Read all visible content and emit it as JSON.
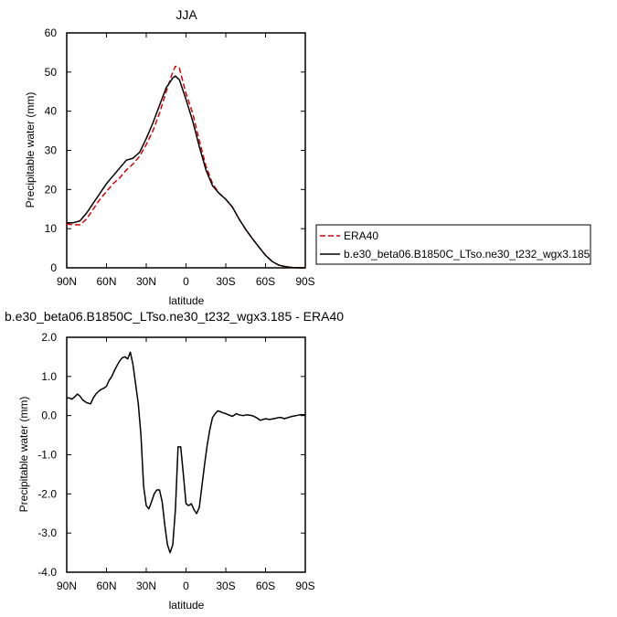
{
  "chart_data": [
    {
      "type": "line",
      "title": "JJA",
      "xlabel": "latitude",
      "ylabel": "Precipitable water (mm)",
      "xlim": [
        90,
        -90
      ],
      "ylim": [
        0,
        60
      ],
      "x_ticks": [
        90,
        60,
        30,
        0,
        -30,
        -60,
        -90
      ],
      "x_tick_labels": [
        "90N",
        "60N",
        "30N",
        "0",
        "30S",
        "60S",
        "90S"
      ],
      "y_ticks": [
        0,
        10,
        20,
        30,
        40,
        50,
        60
      ],
      "y_tick_labels": [
        "0",
        "10",
        "20",
        "30",
        "40",
        "50",
        "60"
      ],
      "legend_position": "right",
      "series": [
        {
          "name": "ERA40",
          "color": "#dd0000",
          "dash": true,
          "x": [
            90,
            85,
            80,
            75,
            70,
            65,
            60,
            55,
            50,
            45,
            40,
            35,
            30,
            25,
            20,
            15,
            10,
            8,
            5,
            0,
            -5,
            -10,
            -15,
            -20,
            -25,
            -30,
            -35,
            -40,
            -45,
            -50,
            -55,
            -60,
            -65,
            -70,
            -75,
            -80,
            -85,
            -90
          ],
          "values": [
            11.2,
            11.0,
            11.0,
            12.5,
            15.0,
            17.5,
            19.5,
            21.5,
            23.0,
            25.0,
            26.5,
            28.5,
            31.5,
            35.0,
            39.5,
            45.0,
            50.0,
            51.5,
            51.0,
            44.5,
            39.5,
            32.5,
            26.0,
            21.5,
            19.0,
            17.5,
            15.5,
            12.5,
            9.8,
            7.5,
            5.3,
            3.2,
            1.6,
            0.7,
            0.3,
            0.1,
            0.0,
            0.0
          ]
        },
        {
          "name": "b.e30_beta06.B1850C_LTso.ne30_t232_wgx3.185",
          "color": "#000000",
          "dash": false,
          "x": [
            90,
            85,
            80,
            75,
            70,
            65,
            60,
            55,
            50,
            45,
            40,
            35,
            30,
            25,
            20,
            15,
            10,
            8,
            5,
            0,
            -5,
            -10,
            -15,
            -20,
            -25,
            -30,
            -35,
            -40,
            -45,
            -50,
            -55,
            -60,
            -65,
            -70,
            -75,
            -80,
            -85,
            -90
          ],
          "values": [
            11.5,
            11.5,
            12.0,
            14.0,
            16.5,
            19.0,
            21.5,
            23.5,
            25.5,
            27.5,
            28.0,
            29.5,
            33.0,
            37.0,
            41.5,
            46.0,
            48.5,
            49.0,
            48.0,
            43.0,
            37.5,
            31.0,
            25.0,
            21.0,
            19.0,
            17.5,
            15.5,
            12.5,
            9.8,
            7.5,
            5.3,
            3.2,
            1.6,
            0.7,
            0.3,
            0.1,
            0.0,
            0.0
          ]
        }
      ]
    },
    {
      "type": "line",
      "title": "b.e30_beta06.B1850C_LTso.ne30_t232_wgx3.185 - ERA40",
      "xlabel": "latitude",
      "ylabel": "Precipitable water (mm)",
      "xlim": [
        90,
        -90
      ],
      "ylim": [
        -4,
        2
      ],
      "x_ticks": [
        90,
        60,
        30,
        0,
        -30,
        -60,
        -90
      ],
      "x_tick_labels": [
        "90N",
        "60N",
        "30N",
        "0",
        "30S",
        "60S",
        "90S"
      ],
      "y_ticks": [
        -4,
        -3,
        -2,
        -1,
        0,
        1,
        2
      ],
      "y_tick_labels": [
        "-4.0",
        "-3.0",
        "-2.0",
        "-1.0",
        "0.0",
        "1.0",
        "2.0"
      ],
      "series": [
        {
          "color": "#000000",
          "dash": false,
          "x": [
            90,
            88,
            86,
            84,
            82,
            80,
            78,
            75,
            72,
            70,
            68,
            66,
            64,
            62,
            60,
            58,
            56,
            54,
            52,
            50,
            48,
            46,
            44,
            42,
            40,
            38,
            36,
            34,
            32,
            30,
            28,
            26,
            24,
            22,
            20,
            18,
            16,
            14,
            12,
            10,
            8,
            6,
            4,
            2,
            0,
            -2,
            -4,
            -6,
            -8,
            -10,
            -12,
            -14,
            -16,
            -18,
            -20,
            -22,
            -24,
            -26,
            -28,
            -30,
            -32,
            -35,
            -38,
            -40,
            -43,
            -46,
            -50,
            -53,
            -56,
            -60,
            -63,
            -66,
            -70,
            -72,
            -74,
            -77,
            -80,
            -83,
            -86,
            -88,
            -90
          ],
          "values": [
            0.45,
            0.45,
            0.42,
            0.48,
            0.55,
            0.5,
            0.4,
            0.33,
            0.3,
            0.45,
            0.55,
            0.62,
            0.67,
            0.7,
            0.75,
            0.9,
            1.0,
            1.15,
            1.28,
            1.4,
            1.48,
            1.5,
            1.45,
            1.62,
            1.3,
            0.8,
            0.3,
            -0.5,
            -1.8,
            -2.3,
            -2.38,
            -2.2,
            -2.0,
            -1.9,
            -1.9,
            -2.2,
            -2.8,
            -3.3,
            -3.5,
            -3.3,
            -2.4,
            -0.8,
            -0.8,
            -1.5,
            -2.25,
            -2.3,
            -2.25,
            -2.4,
            -2.5,
            -2.35,
            -1.8,
            -1.25,
            -0.75,
            -0.35,
            -0.05,
            0.05,
            0.12,
            0.1,
            0.07,
            0.05,
            0.02,
            -0.02,
            0.05,
            0.02,
            0.0,
            0.02,
            0.0,
            -0.05,
            -0.12,
            -0.08,
            -0.1,
            -0.08,
            -0.05,
            -0.05,
            -0.08,
            -0.05,
            -0.02,
            0.0,
            0.02,
            0.02,
            0.02
          ]
        }
      ]
    }
  ]
}
